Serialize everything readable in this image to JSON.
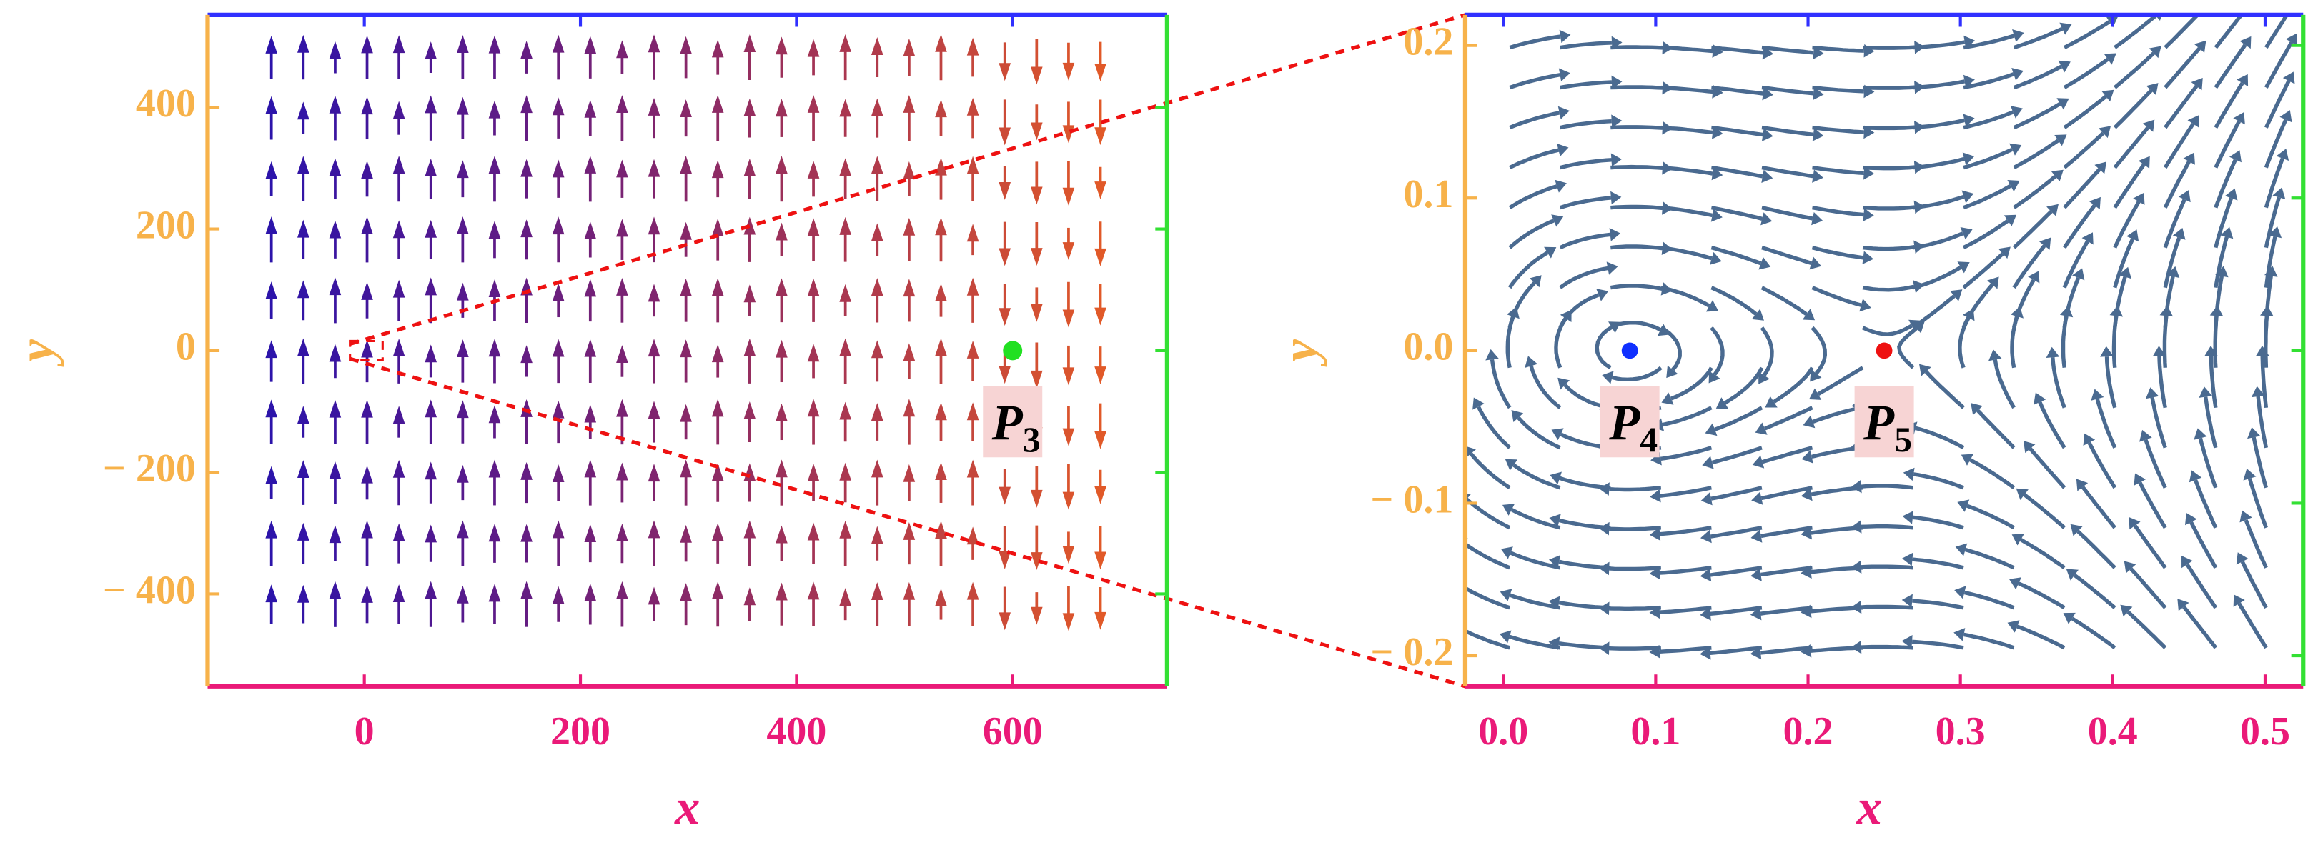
{
  "chart_data": [
    {
      "type": "quiver",
      "xlabel": "x",
      "ylabel": "y",
      "xlim": [
        -145,
        743
      ],
      "ylim": [
        -552,
        552
      ],
      "xticks": [
        0,
        200,
        400,
        600
      ],
      "yticks": [
        {
          "value": -400,
          "label": "− 400"
        },
        {
          "value": -200,
          "label": "− 200"
        },
        0,
        200,
        400
      ],
      "points": [
        {
          "label": "P",
          "sub": "3",
          "x": 600,
          "y": 0,
          "color": "#22e022"
        }
      ],
      "axis_colors": {
        "left": "#f7b24a",
        "bottom": "#ea1a78",
        "top": "#3030ff",
        "right": "#33e033"
      }
    },
    {
      "type": "stream",
      "xlabel": "x",
      "ylabel": "y",
      "xlim": [
        -0.025,
        0.525
      ],
      "ylim": [
        -0.22,
        0.22
      ],
      "xticks": [
        {
          "value": 0,
          "label": "0.0"
        },
        0.1,
        0.2,
        0.3,
        0.4,
        0.5
      ],
      "yticks": [
        {
          "value": -0.2,
          "label": "− 0.2"
        },
        {
          "value": -0.1,
          "label": "− 0.1"
        },
        {
          "value": 0,
          "label": "0.0"
        },
        0.1,
        0.2
      ],
      "points": [
        {
          "label": "P",
          "sub": "4",
          "x": 0.083,
          "y": 0,
          "color": "#1030ff"
        },
        {
          "label": "P",
          "sub": "5",
          "x": 0.25,
          "y": 0,
          "color": "#ee1111"
        }
      ],
      "axis_colors": {
        "left": "#f7b24a",
        "bottom": "#ea1a78",
        "top": "#3030ff",
        "right": "#33e033"
      }
    }
  ]
}
